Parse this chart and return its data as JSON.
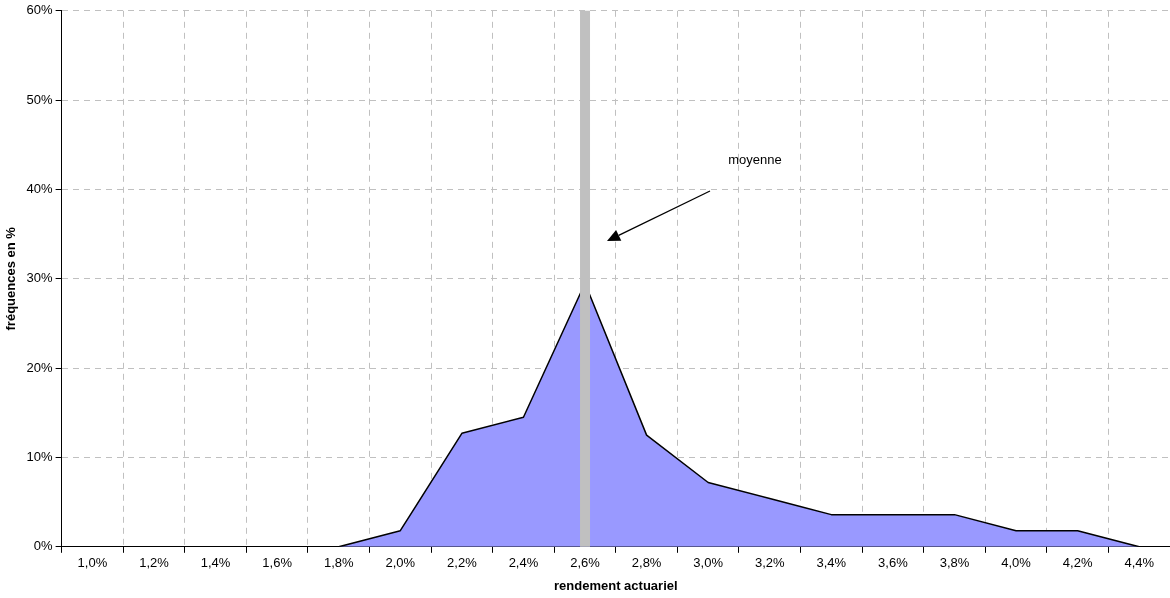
{
  "chart_data": {
    "type": "area",
    "xlabel": "rendement actuariel",
    "ylabel": "fréquences en %",
    "categories": [
      "1,0%",
      "1,2%",
      "1,4%",
      "1,6%",
      "1,8%",
      "2,0%",
      "2,2%",
      "2,4%",
      "2,6%",
      "2,8%",
      "3,0%",
      "3,2%",
      "3,4%",
      "3,6%",
      "3,8%",
      "4,0%",
      "4,2%",
      "4,4%"
    ],
    "series": [
      {
        "color": "#9999ff",
        "values": [
          0,
          0,
          0,
          0,
          0,
          1.8,
          12.7,
          14.5,
          29.5,
          12.5,
          7.2,
          5.4,
          3.6,
          3.6,
          3.6,
          1.8,
          1.8,
          0
        ]
      }
    ],
    "ylim": [
      0,
      60
    ],
    "yticks": [
      {
        "value": 0,
        "label": "0%"
      },
      {
        "value": 10,
        "label": "10%"
      },
      {
        "value": 20,
        "label": "20%"
      },
      {
        "value": 30,
        "label": "30%"
      },
      {
        "value": 40,
        "label": "40%"
      },
      {
        "value": 50,
        "label": "50%"
      },
      {
        "value": 60,
        "label": "60%"
      }
    ],
    "ref_lines": [
      {
        "axis": "x",
        "value": "2,6%",
        "color": "#c0c0c0"
      }
    ],
    "annotations": [
      "moyenne"
    ],
    "grid": true,
    "legend": false
  }
}
